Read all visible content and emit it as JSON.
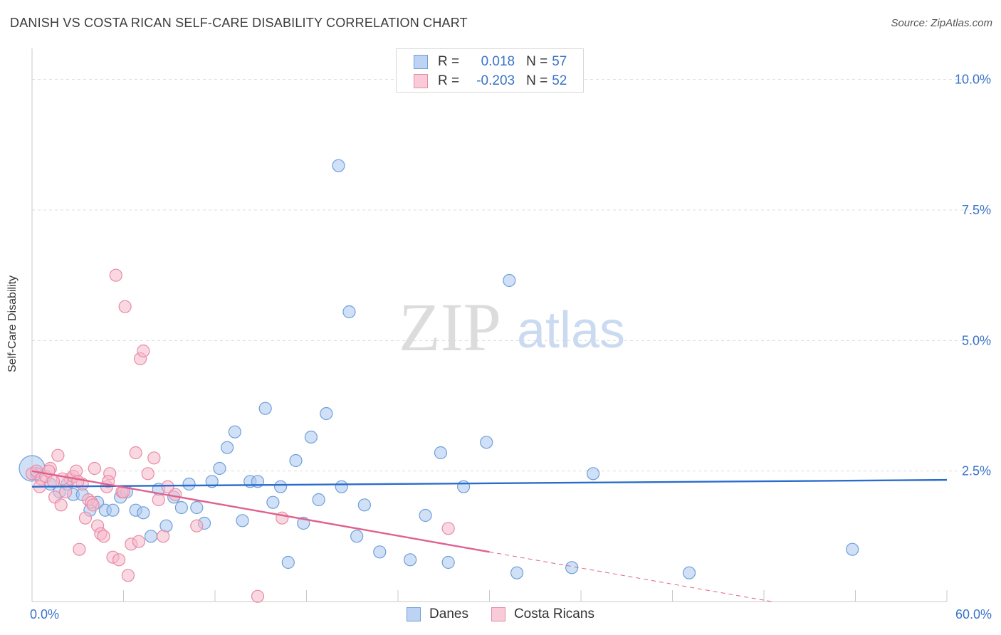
{
  "title": "DANISH VS COSTA RICAN SELF-CARE DISABILITY CORRELATION CHART",
  "source": "Source: ZipAtlas.com",
  "watermark": {
    "zip": "ZIP",
    "atlas": "atlas"
  },
  "stats": [
    {
      "r_label": "R =",
      "r_value": "0.018",
      "n_label": "N =",
      "n_value": "57"
    },
    {
      "r_label": "R =",
      "r_value": "-0.203",
      "n_label": "N =",
      "n_value": "52"
    }
  ],
  "colors": {
    "danes_fill": "#a9c6ef",
    "danes_stroke": "#6f9fd9",
    "danes_line": "#2a6ccd",
    "cr_fill": "#f6b8cb",
    "cr_stroke": "#e88aa6",
    "cr_line": "#e0618e",
    "tick_label": "#3a73c9",
    "grid": "#dcdcdc"
  },
  "chart_data": {
    "type": "scatter",
    "ylabel": "Self-Care Disability",
    "xlabel": "",
    "xlim": [
      0,
      60
    ],
    "ylim": [
      0,
      10.5
    ],
    "x_tick_labels": [
      "0.0%",
      "60.0%"
    ],
    "y_ticks": [
      {
        "value": 2.5,
        "label": "2.5%"
      },
      {
        "value": 5.0,
        "label": "5.0%"
      },
      {
        "value": 7.5,
        "label": "7.5%"
      },
      {
        "value": 10.0,
        "label": "10.0%"
      }
    ],
    "grid": "horizontal dashed",
    "legend": [
      "Danes",
      "Costa Ricans"
    ],
    "series": [
      {
        "name": "Danes",
        "points": [
          [
            0.0,
            2.55
          ],
          [
            0.3,
            2.45
          ],
          [
            1.2,
            2.25
          ],
          [
            1.8,
            2.1
          ],
          [
            2.3,
            2.25
          ],
          [
            2.7,
            2.05
          ],
          [
            3.3,
            2.05
          ],
          [
            3.8,
            1.75
          ],
          [
            4.3,
            1.9
          ],
          [
            4.8,
            1.75
          ],
          [
            5.3,
            1.75
          ],
          [
            5.8,
            2.0
          ],
          [
            6.2,
            2.1
          ],
          [
            6.8,
            1.75
          ],
          [
            7.3,
            1.7
          ],
          [
            7.8,
            1.25
          ],
          [
            8.3,
            2.15
          ],
          [
            8.8,
            1.45
          ],
          [
            9.3,
            2.0
          ],
          [
            9.8,
            1.8
          ],
          [
            10.3,
            2.25
          ],
          [
            10.8,
            1.8
          ],
          [
            11.3,
            1.5
          ],
          [
            11.8,
            2.3
          ],
          [
            12.3,
            2.55
          ],
          [
            12.8,
            2.95
          ],
          [
            13.3,
            3.25
          ],
          [
            13.8,
            1.55
          ],
          [
            14.3,
            2.3
          ],
          [
            14.8,
            2.3
          ],
          [
            15.3,
            3.7
          ],
          [
            15.8,
            1.9
          ],
          [
            16.3,
            2.2
          ],
          [
            16.8,
            0.75
          ],
          [
            17.3,
            2.7
          ],
          [
            17.8,
            1.5
          ],
          [
            18.3,
            3.15
          ],
          [
            18.8,
            1.95
          ],
          [
            19.3,
            3.6
          ],
          [
            20.1,
            8.35
          ],
          [
            20.3,
            2.2
          ],
          [
            20.8,
            5.55
          ],
          [
            21.3,
            1.25
          ],
          [
            21.8,
            1.85
          ],
          [
            22.8,
            0.95
          ],
          [
            24.8,
            0.8
          ],
          [
            25.8,
            1.65
          ],
          [
            26.8,
            2.85
          ],
          [
            27.3,
            0.75
          ],
          [
            28.3,
            2.2
          ],
          [
            29.8,
            3.05
          ],
          [
            31.3,
            6.15
          ],
          [
            31.8,
            0.55
          ],
          [
            35.4,
            0.65
          ],
          [
            36.8,
            2.45
          ],
          [
            43.1,
            0.55
          ],
          [
            53.8,
            1.0
          ]
        ]
      },
      {
        "name": "Costa Ricans",
        "points": [
          [
            0.0,
            2.45
          ],
          [
            0.3,
            2.5
          ],
          [
            0.6,
            2.35
          ],
          [
            0.9,
            2.4
          ],
          [
            1.2,
            2.55
          ],
          [
            1.5,
            2.0
          ],
          [
            1.7,
            2.8
          ],
          [
            1.9,
            1.85
          ],
          [
            2.2,
            2.1
          ],
          [
            2.5,
            2.35
          ],
          [
            2.7,
            2.4
          ],
          [
            2.9,
            2.5
          ],
          [
            3.1,
            1.0
          ],
          [
            3.3,
            2.25
          ],
          [
            3.5,
            1.6
          ],
          [
            3.7,
            1.95
          ],
          [
            3.9,
            1.9
          ],
          [
            4.1,
            2.55
          ],
          [
            4.3,
            1.45
          ],
          [
            4.5,
            1.3
          ],
          [
            4.7,
            1.25
          ],
          [
            4.9,
            2.2
          ],
          [
            5.1,
            2.45
          ],
          [
            5.3,
            0.85
          ],
          [
            5.5,
            6.25
          ],
          [
            5.7,
            0.8
          ],
          [
            5.9,
            2.1
          ],
          [
            6.1,
            5.65
          ],
          [
            6.3,
            0.5
          ],
          [
            6.5,
            1.1
          ],
          [
            6.8,
            2.85
          ],
          [
            7.1,
            4.65
          ],
          [
            7.3,
            4.8
          ],
          [
            7.6,
            2.45
          ],
          [
            8.0,
            2.75
          ],
          [
            8.3,
            1.95
          ],
          [
            8.6,
            1.25
          ],
          [
            8.9,
            2.2
          ],
          [
            9.4,
            2.05
          ],
          [
            10.8,
            1.45
          ],
          [
            14.8,
            0.1
          ],
          [
            16.4,
            1.6
          ],
          [
            27.3,
            1.4
          ],
          [
            1.1,
            2.5
          ],
          [
            2.0,
            2.35
          ],
          [
            3.0,
            2.3
          ],
          [
            4.0,
            1.85
          ],
          [
            5.0,
            2.3
          ],
          [
            0.5,
            2.2
          ],
          [
            6.0,
            2.1
          ],
          [
            7.0,
            1.15
          ],
          [
            1.4,
            2.3
          ]
        ]
      }
    ],
    "trend_lines": [
      {
        "series": "Danes",
        "x": [
          0,
          60
        ],
        "y": [
          2.2,
          2.33
        ],
        "style": "solid"
      },
      {
        "series": "Costa Ricans",
        "x": [
          0,
          30
        ],
        "y": [
          2.5,
          0.95
        ],
        "style": "solid"
      },
      {
        "series": "Costa Ricans",
        "x": [
          30,
          48.5
        ],
        "y": [
          0.95,
          0.0
        ],
        "style": "dashed"
      }
    ]
  }
}
